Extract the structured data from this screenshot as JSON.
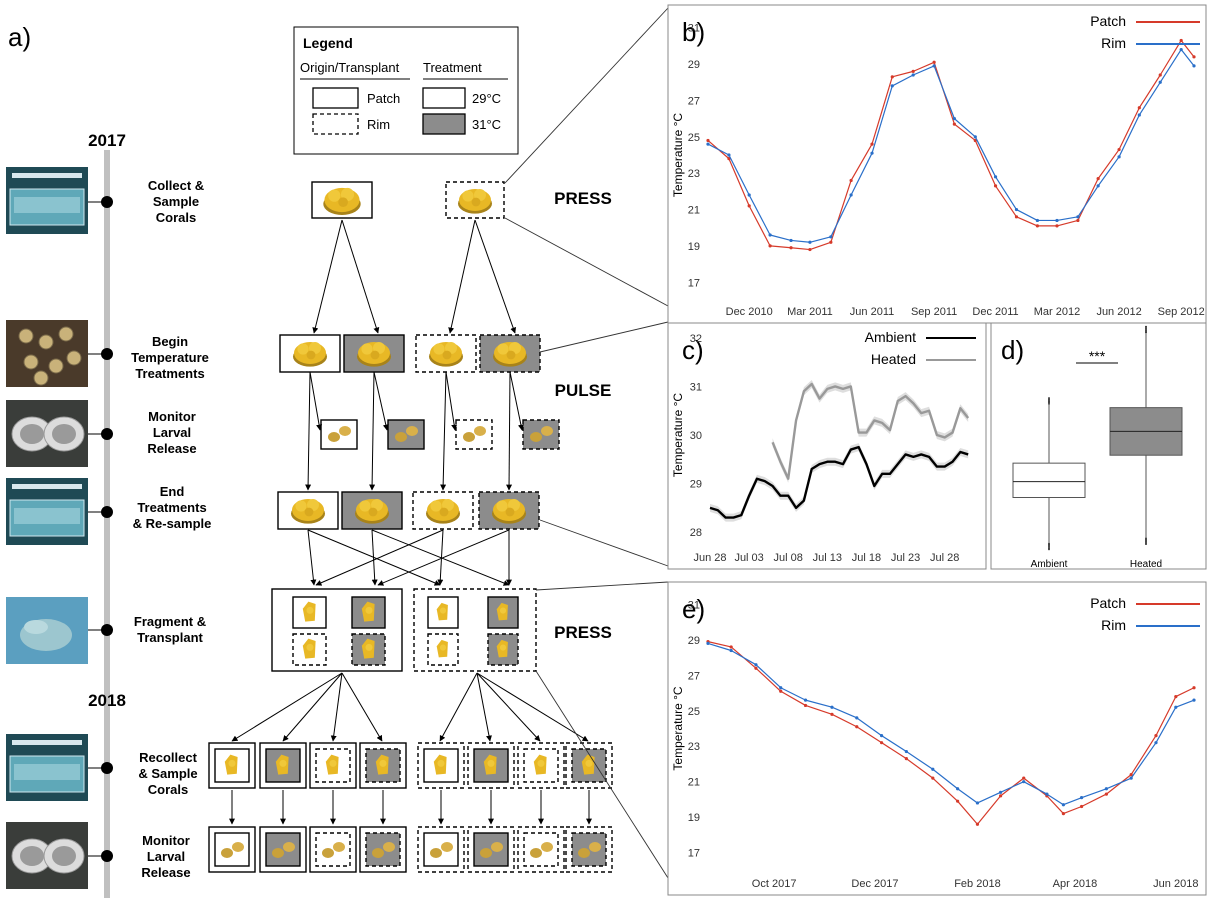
{
  "panel_a": {
    "letter": "a)",
    "year_2017": "2017",
    "year_2018": "2018",
    "legend": {
      "title": "Legend",
      "col1_header": "Origin/Transplant",
      "col2_header": "Treatment",
      "patch": "Patch",
      "rim": "Rim",
      "t29": "29°C",
      "t31": "31°C"
    },
    "steps": [
      {
        "lines": [
          "Collect &",
          "Sample",
          "Corals"
        ]
      },
      {
        "lines": [
          "Begin",
          "Temperature",
          "Treatments"
        ]
      },
      {
        "lines": [
          "Monitor",
          "Larval",
          "Release"
        ]
      },
      {
        "lines": [
          "End",
          "Treatments",
          "& Re-sample"
        ]
      },
      {
        "lines": [
          "Fragment &",
          "Transplant"
        ]
      },
      {
        "lines": [
          "Recollect",
          "& Sample",
          "Corals"
        ]
      },
      {
        "lines": [
          "Monitor",
          "Larval",
          "Release"
        ]
      }
    ],
    "phases": [
      "PRESS",
      "PULSE",
      "PRESS"
    ],
    "colors": {
      "coral": "#e8b825",
      "treatment_31": "#8c8c8c",
      "timeline": "#c0c0c0"
    }
  },
  "chart_data": [
    {
      "panel": "b)",
      "type": "line",
      "ylabel": "Temperature °C",
      "yticks": [
        17,
        19,
        21,
        23,
        25,
        27,
        29,
        31
      ],
      "ylim": [
        16.3,
        31.7
      ],
      "xticks": [
        "Dec 2010",
        "Mar 2011",
        "Jun 2011",
        "Sep 2011",
        "Dec 2011",
        "Mar 2012",
        "Jun 2012",
        "Sep 2012"
      ],
      "x_range": [
        "2010-10-01",
        "2012-09-20"
      ],
      "legend": "top-right",
      "series": [
        {
          "name": "Patch",
          "color": "#d63a2a",
          "x": [
            "2010-10-01",
            "2010-11-01",
            "2010-12-01",
            "2011-01-01",
            "2011-02-01",
            "2011-03-01",
            "2011-04-01",
            "2011-05-01",
            "2011-06-01",
            "2011-07-01",
            "2011-08-01",
            "2011-09-01",
            "2011-10-01",
            "2011-11-01",
            "2011-12-01",
            "2012-01-01",
            "2012-02-01",
            "2012-03-01",
            "2012-04-01",
            "2012-05-01",
            "2012-06-01",
            "2012-07-01",
            "2012-08-01",
            "2012-09-01",
            "2012-09-20"
          ],
          "values": [
            24.8,
            23.8,
            21.2,
            19.0,
            18.9,
            18.8,
            19.2,
            22.6,
            24.6,
            28.3,
            28.6,
            29.1,
            25.7,
            24.8,
            22.3,
            20.6,
            20.1,
            20.1,
            20.4,
            22.7,
            24.3,
            26.6,
            28.4,
            30.3,
            29.4
          ]
        },
        {
          "name": "Rim",
          "color": "#2a6fc9",
          "x": [
            "2010-10-01",
            "2010-11-01",
            "2010-12-01",
            "2011-01-01",
            "2011-02-01",
            "2011-03-01",
            "2011-04-01",
            "2011-05-01",
            "2011-06-01",
            "2011-07-01",
            "2011-08-01",
            "2011-09-01",
            "2011-10-01",
            "2011-11-01",
            "2011-12-01",
            "2012-01-01",
            "2012-02-01",
            "2012-03-01",
            "2012-04-01",
            "2012-05-01",
            "2012-06-01",
            "2012-07-01",
            "2012-08-01",
            "2012-09-01",
            "2012-09-20"
          ],
          "values": [
            24.6,
            24.0,
            21.8,
            19.6,
            19.3,
            19.2,
            19.5,
            21.8,
            24.1,
            27.8,
            28.4,
            28.9,
            26.0,
            25.0,
            22.8,
            21.0,
            20.4,
            20.4,
            20.6,
            22.3,
            23.9,
            26.2,
            28.0,
            29.8,
            28.9
          ]
        }
      ]
    },
    {
      "panel": "c)",
      "type": "line",
      "ylabel": "Temperature °C",
      "yticks": [
        28,
        29,
        30,
        31,
        32
      ],
      "ylim": [
        27.9,
        32.1
      ],
      "xticks": [
        "Jun 28",
        "Jul 03",
        "Jul 08",
        "Jul 13",
        "Jul 18",
        "Jul 23",
        "Jul 28"
      ],
      "x_range": [
        "2017-06-28",
        "2017-08-01"
      ],
      "legend": "top-right",
      "series": [
        {
          "name": "Ambient",
          "color": "#000000",
          "x": [
            "2017-06-28",
            "2017-06-29",
            "2017-06-30",
            "2017-07-01",
            "2017-07-02",
            "2017-07-03",
            "2017-07-04",
            "2017-07-05",
            "2017-07-06",
            "2017-07-07",
            "2017-07-08",
            "2017-07-09",
            "2017-07-10",
            "2017-07-11",
            "2017-07-12",
            "2017-07-13",
            "2017-07-14",
            "2017-07-15",
            "2017-07-16",
            "2017-07-17",
            "2017-07-18",
            "2017-07-19",
            "2017-07-20",
            "2017-07-21",
            "2017-07-22",
            "2017-07-23",
            "2017-07-24",
            "2017-07-25",
            "2017-07-26",
            "2017-07-27",
            "2017-07-28",
            "2017-07-29",
            "2017-07-30",
            "2017-07-31"
          ],
          "values": [
            28.5,
            28.45,
            28.3,
            28.3,
            28.35,
            28.75,
            29.1,
            29.05,
            28.95,
            28.75,
            28.75,
            28.5,
            28.65,
            29.3,
            29.4,
            29.45,
            29.45,
            29.4,
            29.7,
            29.75,
            29.4,
            28.95,
            29.2,
            29.2,
            29.4,
            29.6,
            29.55,
            29.6,
            29.55,
            29.35,
            29.35,
            29.45,
            29.65,
            29.6
          ]
        },
        {
          "name": "Heated",
          "color": "#999999",
          "x": [
            "2017-07-06",
            "2017-07-07",
            "2017-07-08",
            "2017-07-09",
            "2017-07-10",
            "2017-07-11",
            "2017-07-12",
            "2017-07-13",
            "2017-07-14",
            "2017-07-15",
            "2017-07-16",
            "2017-07-17",
            "2017-07-18",
            "2017-07-19",
            "2017-07-20",
            "2017-07-21",
            "2017-07-22",
            "2017-07-23",
            "2017-07-24",
            "2017-07-25",
            "2017-07-26",
            "2017-07-27",
            "2017-07-28",
            "2017-07-29",
            "2017-07-30",
            "2017-07-31"
          ],
          "values": [
            29.85,
            29.45,
            29.1,
            30.3,
            30.9,
            31.05,
            30.75,
            30.95,
            31.0,
            30.95,
            31.0,
            30.05,
            30.05,
            30.3,
            30.25,
            30.1,
            30.7,
            30.8,
            30.65,
            30.45,
            30.5,
            30.0,
            29.95,
            30.05,
            30.55,
            30.35
          ]
        }
      ]
    },
    {
      "panel": "d)",
      "type": "box",
      "categories": [
        "Ambient",
        "Heated"
      ],
      "significance": "***",
      "ylim": [
        27.9,
        32.1
      ],
      "boxes": [
        {
          "name": "Ambient",
          "min": 28.1,
          "q1": 28.95,
          "median": 29.25,
          "q3": 29.6,
          "max": 30.7,
          "fill": "#ffffff"
        },
        {
          "name": "Heated",
          "min": 28.2,
          "q1": 29.75,
          "median": 30.2,
          "q3": 30.65,
          "max": 32.05,
          "fill": "#8c8c8c"
        }
      ]
    },
    {
      "panel": "e)",
      "type": "line",
      "ylabel": "Temperature °C",
      "yticks": [
        17,
        19,
        21,
        23,
        25,
        27,
        29,
        31
      ],
      "ylim": [
        16.3,
        31.7
      ],
      "xticks": [
        "Oct 2017",
        "Dec 2017",
        "Feb 2018",
        "Apr 2018",
        "Jun 2018"
      ],
      "x_range": [
        "2017-08-22",
        "2018-06-12"
      ],
      "legend": "top-right",
      "series": [
        {
          "name": "Patch",
          "color": "#d63a2a",
          "x": [
            "2017-08-22",
            "2017-09-05",
            "2017-09-20",
            "2017-10-05",
            "2017-10-20",
            "2017-11-05",
            "2017-11-20",
            "2017-12-05",
            "2017-12-20",
            "2018-01-05",
            "2018-01-20",
            "2018-02-01",
            "2018-02-15",
            "2018-03-01",
            "2018-03-15",
            "2018-03-25",
            "2018-04-05",
            "2018-04-20",
            "2018-05-05",
            "2018-05-20",
            "2018-06-01",
            "2018-06-12"
          ],
          "values": [
            28.9,
            28.6,
            27.4,
            26.1,
            25.3,
            24.8,
            24.1,
            23.2,
            22.3,
            21.2,
            19.9,
            18.6,
            20.2,
            21.2,
            20.2,
            19.2,
            19.6,
            20.3,
            21.4,
            23.6,
            25.8,
            26.3
          ]
        },
        {
          "name": "Rim",
          "color": "#2a6fc9",
          "x": [
            "2017-08-22",
            "2017-09-05",
            "2017-09-20",
            "2017-10-05",
            "2017-10-20",
            "2017-11-05",
            "2017-11-20",
            "2017-12-05",
            "2017-12-20",
            "2018-01-05",
            "2018-01-20",
            "2018-02-01",
            "2018-02-15",
            "2018-03-01",
            "2018-03-15",
            "2018-03-25",
            "2018-04-05",
            "2018-04-20",
            "2018-05-05",
            "2018-05-20",
            "2018-06-01",
            "2018-06-12"
          ],
          "values": [
            28.8,
            28.4,
            27.6,
            26.3,
            25.6,
            25.2,
            24.6,
            23.6,
            22.7,
            21.7,
            20.6,
            19.8,
            20.4,
            21.0,
            20.3,
            19.7,
            20.1,
            20.6,
            21.2,
            23.2,
            25.2,
            25.6
          ]
        }
      ]
    }
  ]
}
